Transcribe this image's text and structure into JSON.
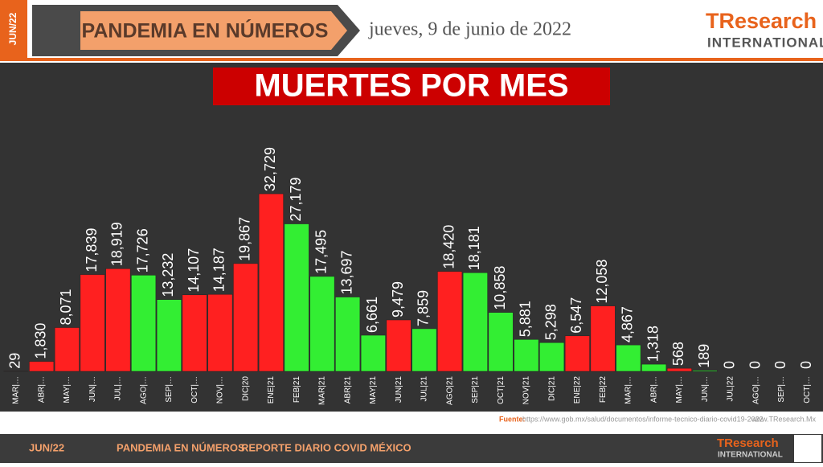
{
  "header": {
    "date_tab": "JUN/22",
    "section": "PANDEMIA EN NÚMEROS",
    "date": "jueves, 9 de junio de 2022",
    "logo_brand": "TResearch",
    "logo_sub": "INTERNATIONAL"
  },
  "chart_data": {
    "type": "bar",
    "title": "MUERTES POR MES",
    "categories": [
      "MAR|…",
      "ABR|…",
      "MAY|…",
      "JUN|…",
      "JUL|…",
      "AGO|…",
      "SEP|…",
      "OCT|…",
      "NOV|…",
      "DIC|20",
      "ENE|21",
      "FEB|21",
      "MAR|21",
      "ABR|21",
      "MAY|21",
      "JUN|21",
      "JUL|21",
      "AGO|21",
      "SEP|21",
      "OCT|21",
      "NOV|21",
      "DIC|21",
      "ENE|22",
      "FEB|22",
      "MAR|…",
      "ABR|…",
      "MAY|…",
      "JUN|…",
      "JUL|22",
      "AGO|…",
      "SEP|…",
      "OCT|…"
    ],
    "values": [
      29,
      1830,
      8071,
      17839,
      18919,
      17726,
      13232,
      14107,
      14187,
      19867,
      32729,
      27179,
      17495,
      13697,
      6661,
      9479,
      7859,
      18420,
      18181,
      10858,
      5881,
      5298,
      6547,
      12058,
      4867,
      1318,
      568,
      189,
      0,
      0,
      0,
      0
    ],
    "value_labels": [
      "29",
      "1,830",
      "8,071",
      "17,839",
      "18,919",
      "17,726",
      "13,232",
      "14,107",
      "14,187",
      "19,867",
      "32,729",
      "27,179",
      "17,495",
      "13,697",
      "6,661",
      "9,479",
      "7,859",
      "18,420",
      "18,181",
      "10,858",
      "5,881",
      "5,298",
      "6,547",
      "12,058",
      "4,867",
      "1,318",
      "568",
      "189",
      "0",
      "0",
      "0",
      "0"
    ],
    "colors": [
      "#ff2020",
      "#ff2020",
      "#ff2020",
      "#ff2020",
      "#ff2020",
      "#33ee33",
      "#33ee33",
      "#ff2020",
      "#ff2020",
      "#ff2020",
      "#ff2020",
      "#33ee33",
      "#33ee33",
      "#33ee33",
      "#33ee33",
      "#ff2020",
      "#33ee33",
      "#ff2020",
      "#33ee33",
      "#33ee33",
      "#33ee33",
      "#33ee33",
      "#ff2020",
      "#ff2020",
      "#33ee33",
      "#33ee33",
      "#ff2020",
      "#33ee33",
      "#33ee33",
      "#33ee33",
      "#33ee33",
      "#33ee33"
    ],
    "ylim": [
      0,
      40000
    ]
  },
  "source": {
    "label": "Fuente:",
    "url": "https://www.gob.mx/salud/documentos/informe-tecnico-diario-covid19-2022",
    "site": "www.TResearch.Mx"
  },
  "footer": {
    "date_tab": "JUN/22",
    "section": "PANDEMIA EN NÚMEROS",
    "report": "REPORTE DIARIO COVID MÉXICO",
    "logo_brand": "TResearch",
    "logo_sub": "INTERNATIONAL"
  }
}
